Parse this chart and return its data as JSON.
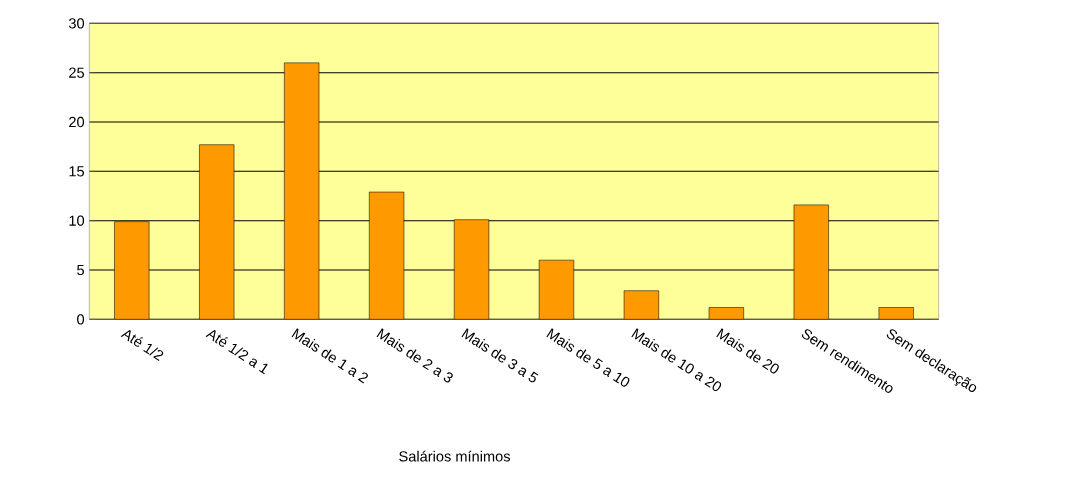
{
  "chart_data": {
    "type": "bar",
    "xlabel": "Salários mínimos",
    "categories": [
      "Até 1/2",
      "Até 1/2 a 1",
      "Mais de 1 a 2",
      "Mais de 2 a 3",
      "Mais de 3 a 5",
      "Mais de 5 a 10",
      "Mais de 10 a 20",
      "Mais de 20",
      "Sem rendimento",
      "Sem declaração"
    ],
    "values": [
      9.9,
      17.7,
      26,
      12.9,
      10.1,
      6,
      2.9,
      1.2,
      11.6,
      1.2
    ],
    "color": "#ff9900",
    "ylim": [
      0,
      30
    ],
    "yticks": [
      0,
      5,
      10,
      15,
      20,
      25,
      30
    ],
    "grid": "y"
  }
}
